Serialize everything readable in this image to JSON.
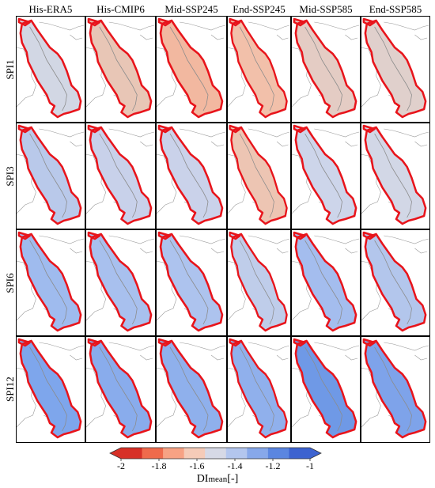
{
  "columns": [
    "His-ERA5",
    "His-CMIP6",
    "Mid-SSP245",
    "End-SSP245",
    "Mid-SSP585",
    "End-SSP585"
  ],
  "rows": [
    "SPI1",
    "SPI3",
    "SPI6",
    "SPI12"
  ],
  "colorbar": {
    "ticks": [
      "-2",
      "-1.8",
      "-1.6",
      "-1.4",
      "-1.2",
      "-1"
    ],
    "title_main": "DI",
    "title_sub": "mean",
    "title_unit": "[-]",
    "colors": [
      "#d73027",
      "#ef6a4c",
      "#f7a284",
      "#f5cbb8",
      "#d6d9e6",
      "#b3c6ee",
      "#87a8ea",
      "#5b86e0",
      "#3d63d0"
    ]
  },
  "cells": [
    [
      "#d2d7e4",
      "#e8c6b6",
      "#f2b8a0",
      "#f2c0aa",
      "#e4ccc4",
      "#e0d0cc"
    ],
    [
      "#b9c9ea",
      "#c8d1ea",
      "#cad2ea",
      "#edc5b3",
      "#cdd5ea",
      "#d2d7e6"
    ],
    [
      "#9fbbee",
      "#a8c0ee",
      "#adc3ee",
      "#bfcdea",
      "#a4bdee",
      "#b3c6ec"
    ],
    [
      "#7ea6ec",
      "#89acec",
      "#8fb0ec",
      "#90b0ec",
      "#6f99e6",
      "#7ea3ea"
    ]
  ]
}
